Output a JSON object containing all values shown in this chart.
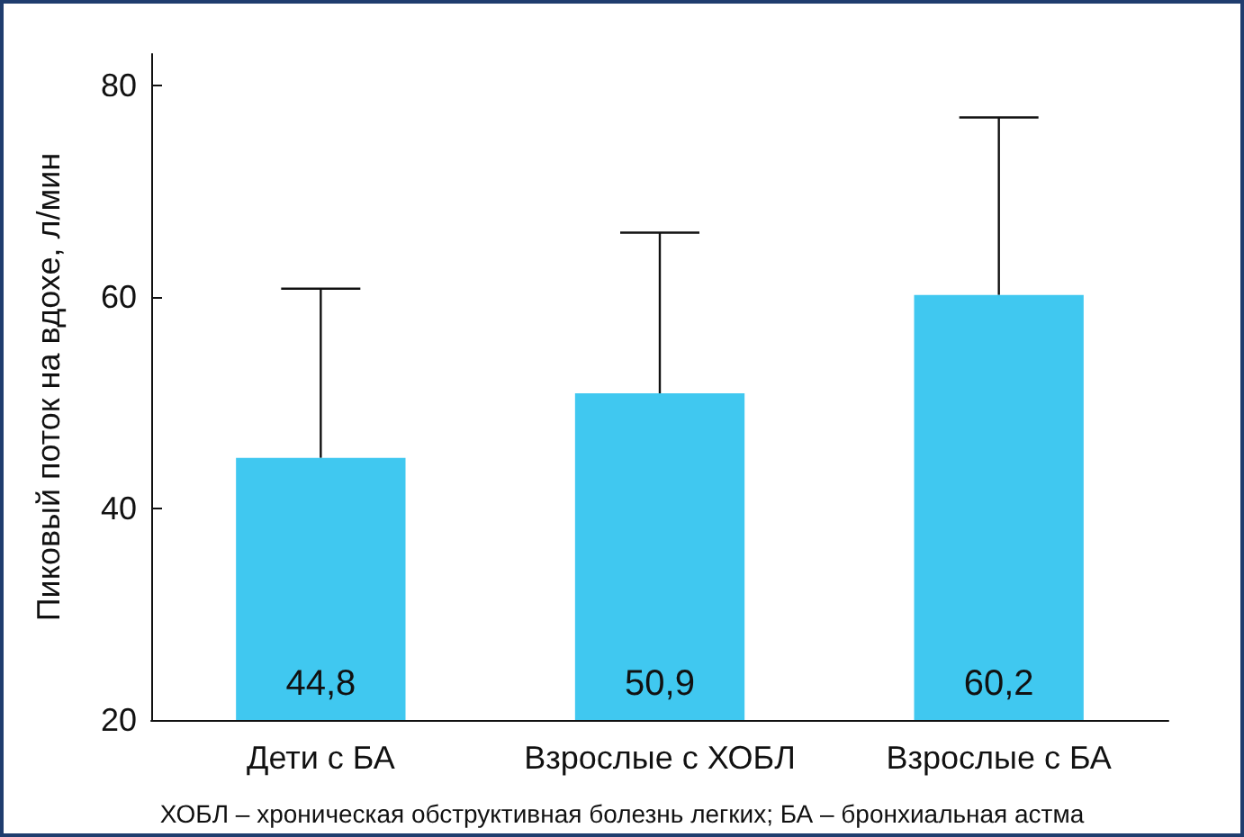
{
  "chart_data": {
    "type": "bar",
    "ylabel": "Пиковый поток на вдохе, л/мин",
    "categories": [
      "Дети с БА",
      "Взрослые с ХОБЛ",
      "Взрослые с БА"
    ],
    "values": [
      44.8,
      50.9,
      60.2
    ],
    "value_labels": [
      "44,8",
      "50,9",
      "60,2"
    ],
    "errors": [
      [
        44.8,
        60.8
      ],
      [
        50.9,
        66.1
      ],
      [
        60.2,
        77.0
      ]
    ],
    "color": "#40c8f0",
    "ylim": [
      20,
      83
    ],
    "yticks": [
      20,
      40,
      60,
      80
    ],
    "grid": false,
    "annotations": [
      "ХОБЛ – хроническая обструктивная болезнь легких; БА – бронхиальная астма"
    ]
  }
}
